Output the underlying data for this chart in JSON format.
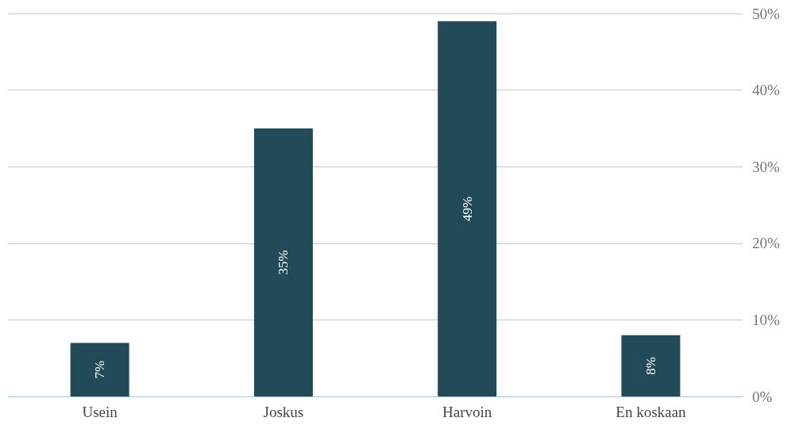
{
  "chart_data": {
    "type": "bar",
    "categories": [
      "Usein",
      "Joskus",
      "Harvoin",
      "En koskaan"
    ],
    "values": [
      7,
      35,
      49,
      8
    ],
    "value_labels": [
      "7%",
      "35%",
      "49%",
      "8%"
    ],
    "color": "#234a58",
    "ylim": [
      0,
      50
    ],
    "yticks": [
      {
        "value": 0,
        "label": "0%"
      },
      {
        "value": 10,
        "label": "10%"
      },
      {
        "value": 20,
        "label": "20%"
      },
      {
        "value": 30,
        "label": "30%"
      },
      {
        "value": 40,
        "label": "40%"
      },
      {
        "value": 50,
        "label": "50%"
      }
    ],
    "grid": "y"
  }
}
